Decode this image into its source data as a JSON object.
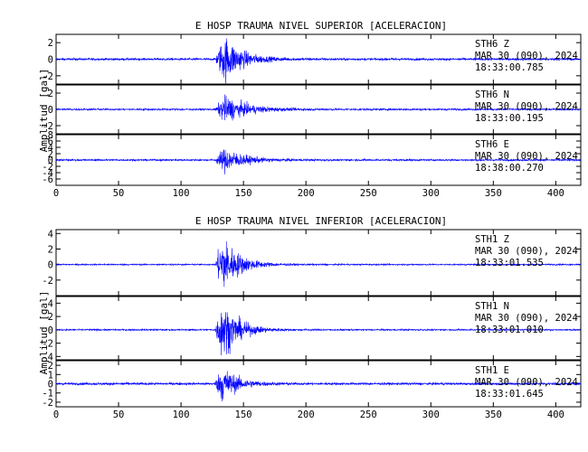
{
  "chart_data": [
    {
      "type": "line",
      "title": "E HOSP TRAUMA NIVEL SUPERIOR [ACELERACION]",
      "ylabel": "Amplitud [gal]",
      "xlim": [
        0,
        420
      ],
      "xticks": [
        "0",
        "50",
        "100",
        "150",
        "200",
        "250",
        "300",
        "350",
        "400"
      ],
      "line_color": "#0000ff",
      "traces": [
        {
          "station": "STH6",
          "component": "Z",
          "date": "MAR 30 (090), 2024",
          "time": "18:33:00.785",
          "yticks": [
            "2",
            "0",
            "-2"
          ],
          "ylim": [
            -3,
            3
          ],
          "onset_x": 127,
          "peak_x": 135,
          "peak_amp": 2.6,
          "noise": 0.12,
          "decay": 14
        },
        {
          "station": "STH6",
          "component": "N",
          "date": "MAR 30 (090), 2024",
          "time": "18:33:00.195",
          "yticks": [
            "2",
            "0",
            "-2"
          ],
          "ylim": [
            -3,
            3
          ],
          "onset_x": 127,
          "peak_x": 135,
          "peak_amp": 1.5,
          "noise": 0.1,
          "decay": 18
        },
        {
          "station": "STH6",
          "component": "E",
          "date": "MAR 30 (090), 2024",
          "time": "18:38:00.270",
          "yticks": [
            "8",
            "6",
            "4",
            "2",
            "0",
            "-2",
            "-4",
            "-6"
          ],
          "ylim": [
            -8,
            8
          ],
          "onset_x": 127,
          "peak_x": 135,
          "peak_amp": 3.5,
          "noise": 0.25,
          "decay": 16
        }
      ]
    },
    {
      "type": "line",
      "title": "E HOSP TRAUMA NIVEL INFERIOR [ACELERACION]",
      "ylabel": "Amplitud [gal]",
      "xlim": [
        0,
        420
      ],
      "xticks": [
        "0",
        "50",
        "100",
        "150",
        "200",
        "250",
        "300",
        "350",
        "400"
      ],
      "line_color": "#0000ff",
      "traces": [
        {
          "station": "STH1",
          "component": "Z",
          "date": "MAR 30 (090), 2024",
          "time": "18:33:01.535",
          "yticks": [
            "4",
            "2",
            "0",
            "-2"
          ],
          "ylim": [
            -4,
            4.5
          ],
          "onset_x": 127,
          "peak_x": 133,
          "peak_amp": 3.5,
          "noise": 0.08,
          "decay": 13
        },
        {
          "station": "STH1",
          "component": "N",
          "date": "MAR 30 (090), 2024",
          "time": "18:33:01.010",
          "yticks": [
            "4",
            "2",
            "0",
            "-2",
            "-4"
          ],
          "ylim": [
            -4.5,
            5
          ],
          "onset_x": 127,
          "peak_x": 133,
          "peak_amp": 4.0,
          "noise": 0.1,
          "decay": 13
        },
        {
          "station": "STH1",
          "component": "E",
          "date": "MAR 30 (090), 2024",
          "time": "18:33:01.645",
          "yticks": [
            "2",
            "1",
            "0",
            "-1",
            "-2"
          ],
          "ylim": [
            -2.5,
            2.5
          ],
          "onset_x": 127,
          "peak_x": 133,
          "peak_amp": 1.8,
          "noise": 0.12,
          "decay": 12
        }
      ]
    }
  ]
}
